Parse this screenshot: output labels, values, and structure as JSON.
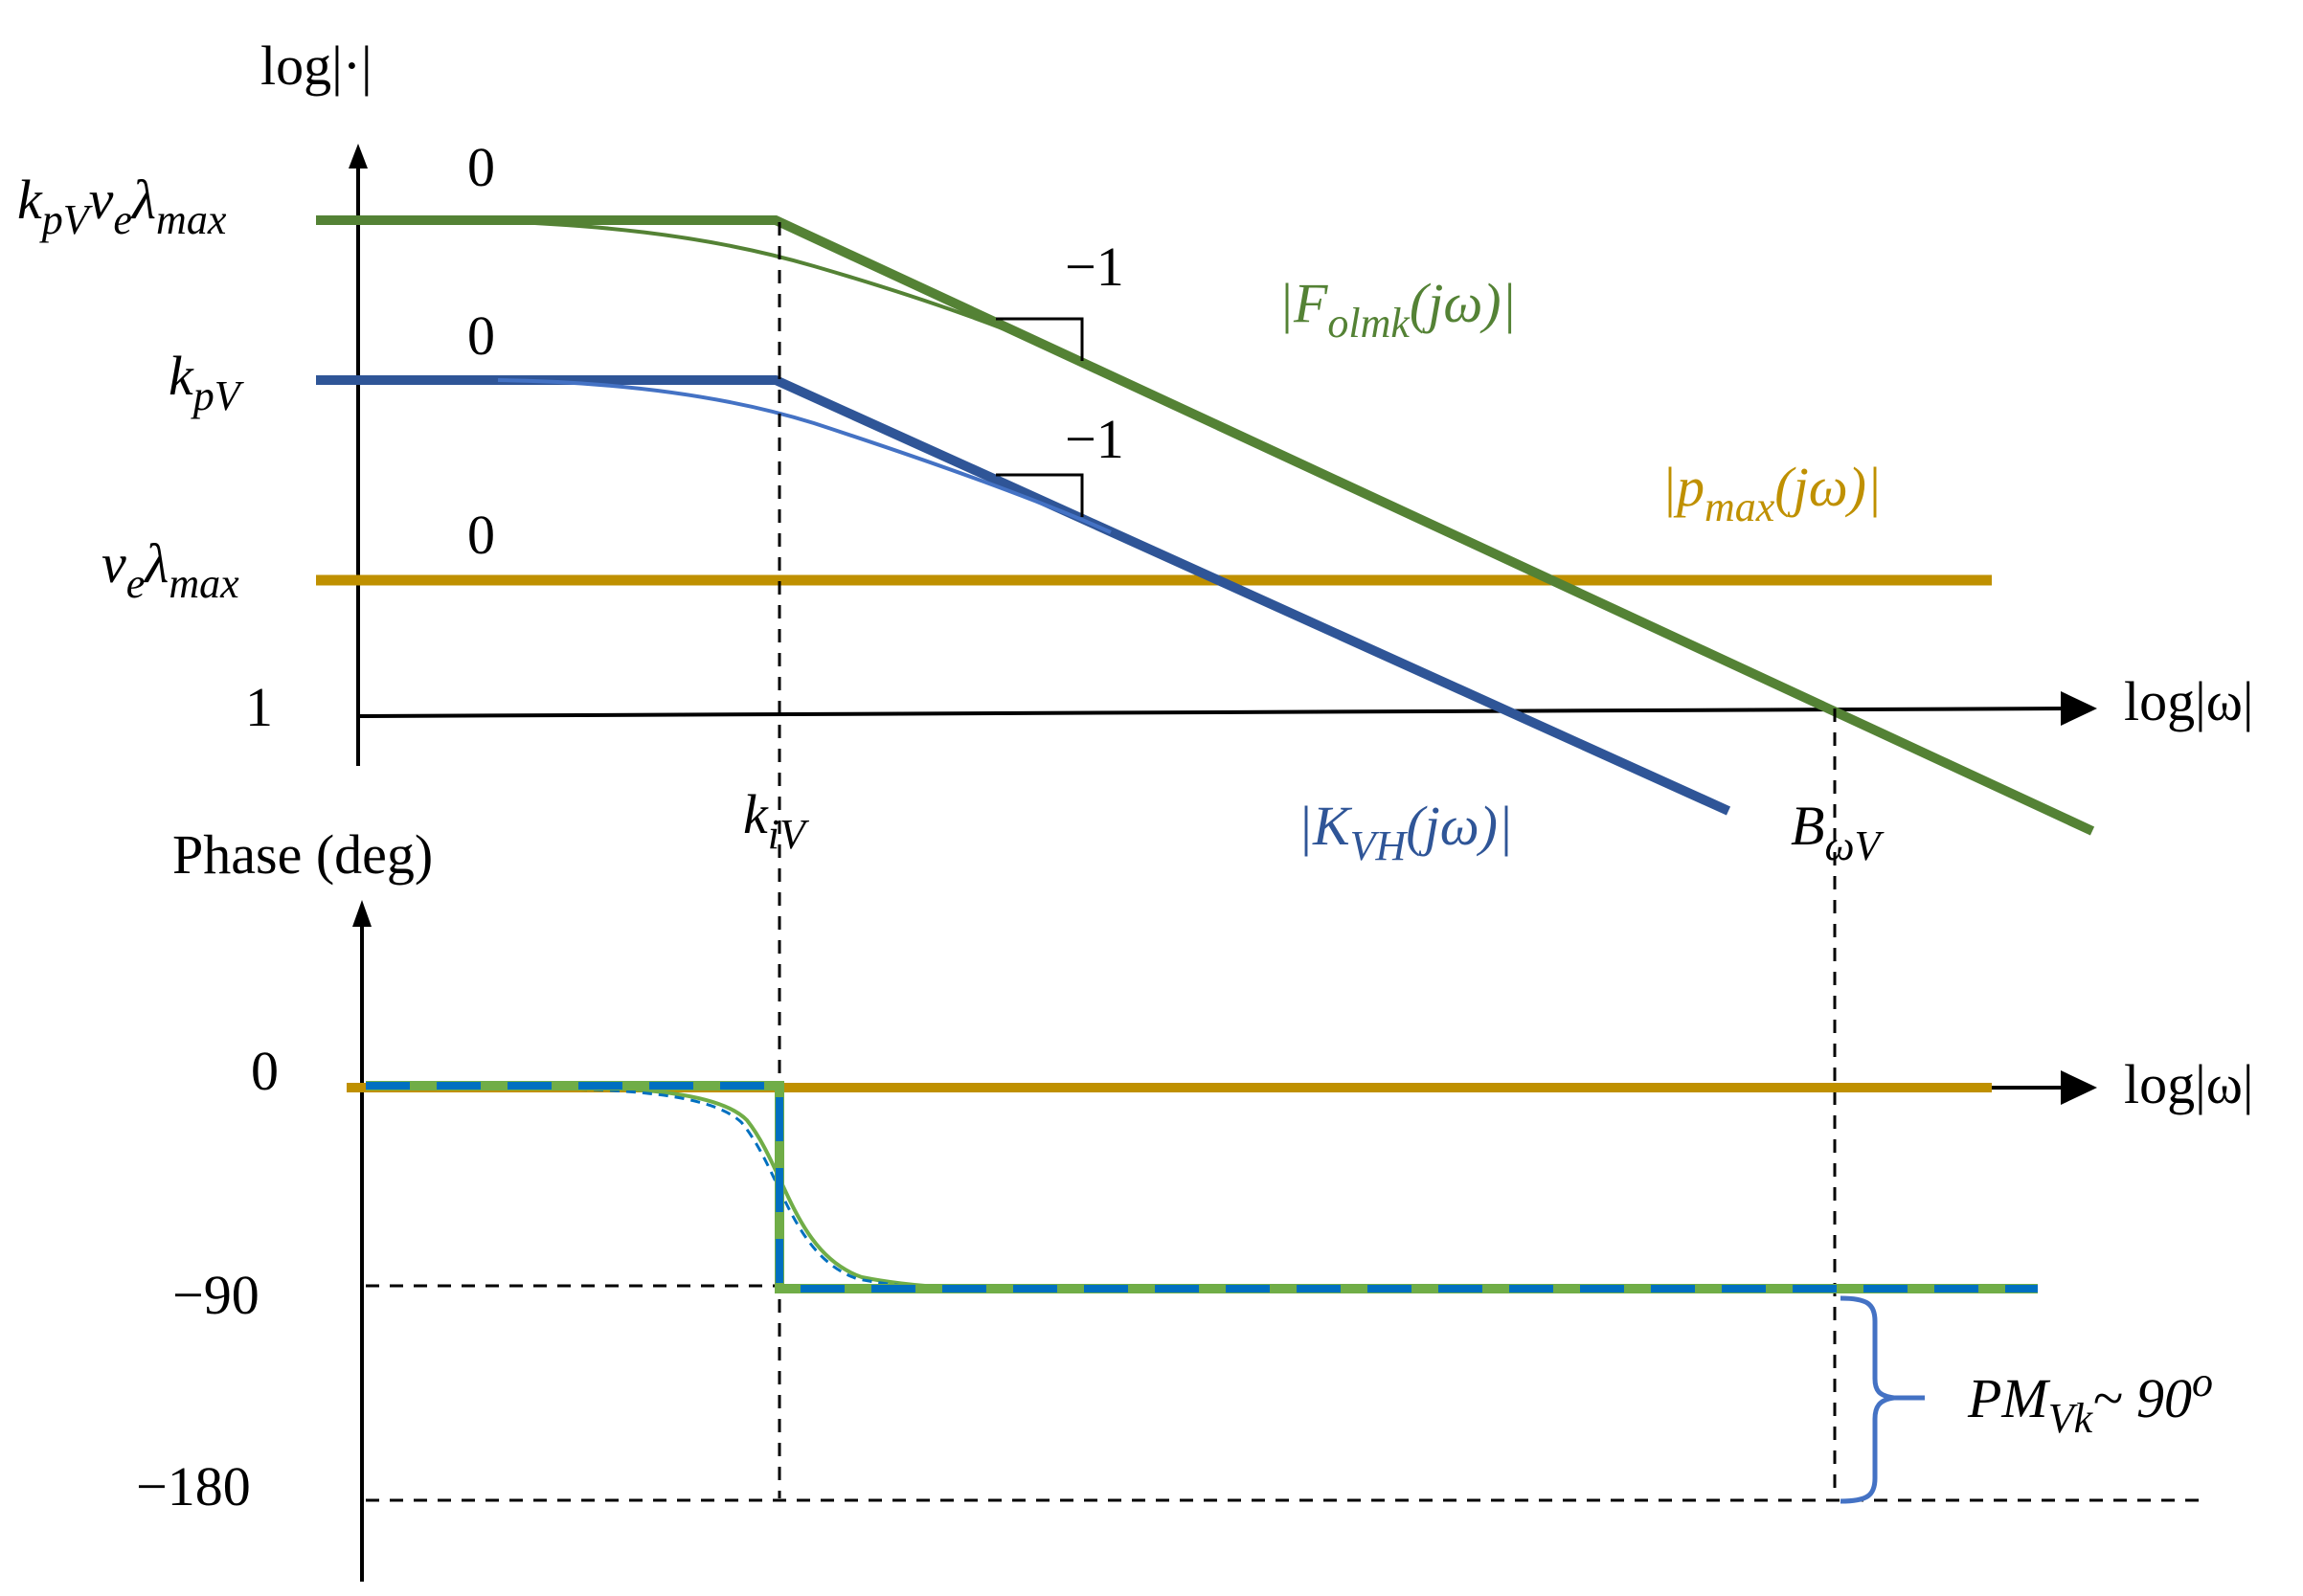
{
  "colors": {
    "green": "#548235",
    "green_light": "#70ad47",
    "blue": "#2f5597",
    "blue_light": "#4472c4",
    "blue_bright": "#0070c0",
    "gold": "#bf9000",
    "black": "#000000"
  },
  "magnitude_plot": {
    "y_axis_label": "log|·|",
    "x_axis_label": "log|ω|",
    "y_levels": [
      {
        "main": "k",
        "sub1": "pV",
        "mid": "v",
        "sub2": "e",
        "tail": "λ",
        "sub3": "max"
      },
      {
        "main": "k",
        "sub1": "pV"
      },
      {
        "main": "v",
        "sub1": "e",
        "mid": "λ",
        "sub2": "max"
      },
      {
        "plain": "1"
      }
    ],
    "slope_zero_labels": [
      "0",
      "0",
      "0"
    ],
    "slope_minus_one_labels": [
      "−1",
      "−1"
    ],
    "curves": {
      "folmk": {
        "open": "|",
        "main": "F",
        "sub": "olmk",
        "arg": "(jω)",
        "close": "|",
        "color": "green"
      },
      "pmax": {
        "open": "|",
        "main": "p",
        "sub": "max",
        "arg": "(jω)",
        "close": "|",
        "color": "gold"
      },
      "kvh": {
        "open": "|",
        "main": "K",
        "sub": "VH",
        "arg": "(jω)",
        "close": "|",
        "color": "blue"
      }
    }
  },
  "frequency_markers": {
    "kiv": {
      "main": "k",
      "sub": "iV"
    },
    "bwv": {
      "main": "B",
      "sub": "ωV"
    }
  },
  "phase_plot": {
    "y_axis_label": "Phase (deg)",
    "x_axis_label": "log|ω|",
    "y_ticks": [
      "0",
      "−90",
      "−180"
    ],
    "phase_margin": {
      "main": "PM",
      "sub": "Vk",
      "mid": "~ 90",
      "sup": "o"
    }
  }
}
